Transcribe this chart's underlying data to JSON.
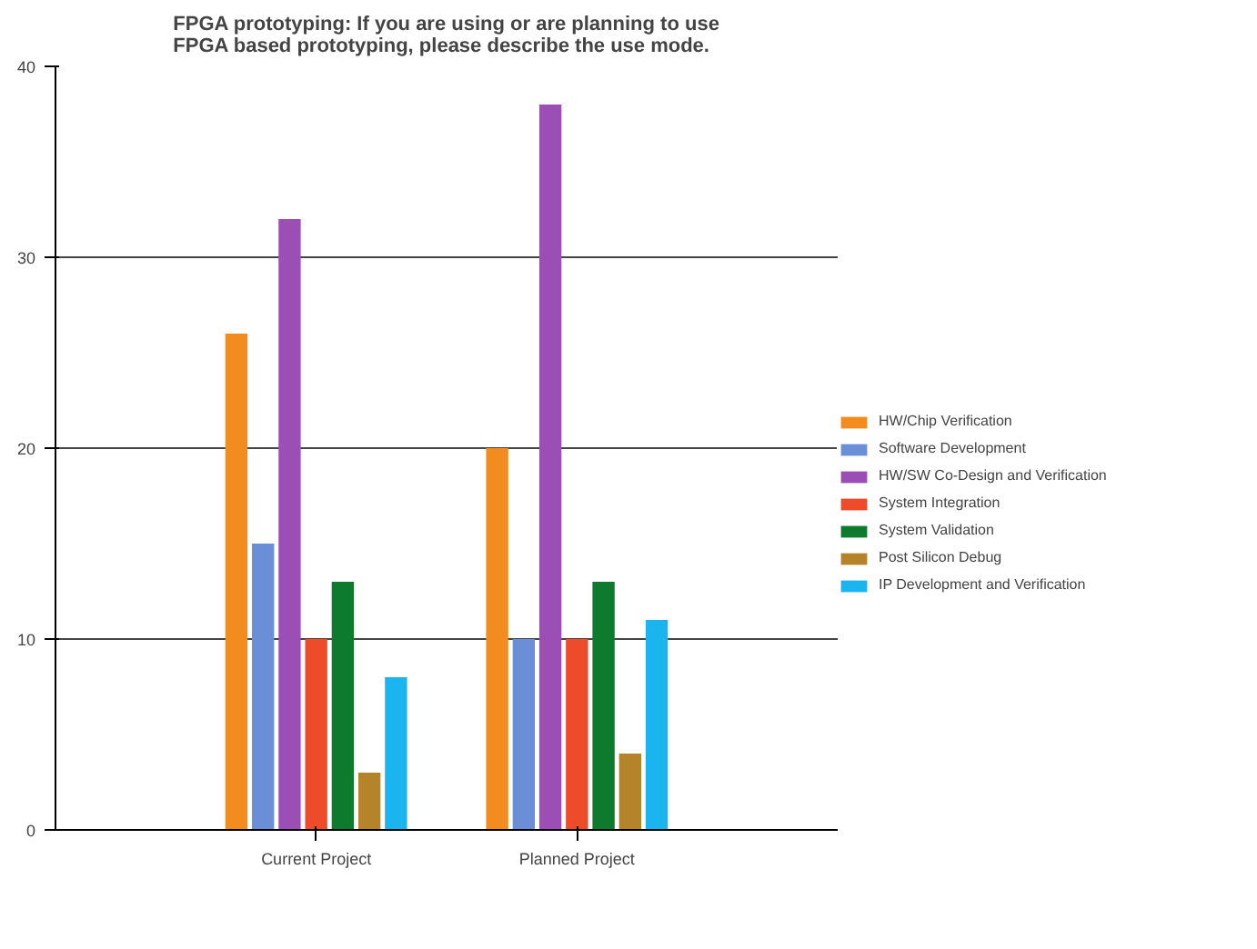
{
  "chart_data": {
    "type": "bar",
    "title": "FPGA prototyping: If you are using or are planning to use FPGA based prototyping, please describe the use mode.",
    "categories": [
      "Current Project",
      "Planned Project"
    ],
    "series": [
      {
        "name": "HW/Chip Verification",
        "color": "#f28c1e",
        "values": [
          26,
          20
        ]
      },
      {
        "name": "Software Development",
        "color": "#6b8fd6",
        "values": [
          15,
          10
        ]
      },
      {
        "name": "HW/SW Co-Design and Verification",
        "color": "#9b4fb5",
        "values": [
          32,
          38
        ]
      },
      {
        "name": "System Integration",
        "color": "#ee4b2b",
        "values": [
          10,
          10
        ]
      },
      {
        "name": "System Validation",
        "color": "#0e7a2e",
        "values": [
          13,
          13
        ]
      },
      {
        "name": "Post Silicon Debug",
        "color": "#b5832a",
        "values": [
          3,
          4
        ]
      },
      {
        "name": "IP Development and Verification",
        "color": "#1ab4ee",
        "values": [
          8,
          11
        ]
      }
    ],
    "ylim": [
      0,
      40
    ],
    "yticks": [
      0,
      10,
      20,
      30,
      40
    ],
    "grid": "y",
    "legend": "right"
  }
}
